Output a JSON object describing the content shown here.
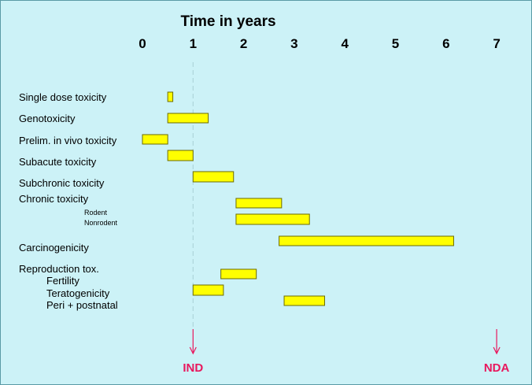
{
  "colors": {
    "background": "#ccf2f7",
    "bar_fill": "#ffff00",
    "bar_stroke": "#6b6b00",
    "milestone": "#e8175d",
    "reference_line": "#a9d0d6"
  },
  "chart_data": {
    "type": "gantt",
    "title": "Time in years",
    "xlim": [
      0,
      7
    ],
    "x_ticks": [
      0,
      1,
      2,
      3,
      4,
      5,
      6,
      7
    ],
    "x_tick_labels": [
      "0",
      "1",
      "2",
      "3",
      "4",
      "5",
      "6",
      "7"
    ],
    "reference_line_x": 1,
    "bars": [
      {
        "label": "Single dose toxicity",
        "start": 0.5,
        "end": 0.6
      },
      {
        "label": "Genotoxicity",
        "start": 0.5,
        "end": 1.3
      },
      {
        "label": "Prelim. in vivo toxicity",
        "start": 0.0,
        "end": 0.5
      },
      {
        "label": "Subacute toxicity",
        "start": 0.5,
        "end": 1.0
      },
      {
        "label": "Subchronic toxicity",
        "start": 1.0,
        "end": 1.8
      },
      {
        "label": "Rodent",
        "start": 1.85,
        "end": 2.75
      },
      {
        "label": "Nonrodent",
        "start": 1.85,
        "end": 3.3
      },
      {
        "label": "Carcinogenicity",
        "start": 2.7,
        "end": 6.15
      },
      {
        "label": "Fertility",
        "start": 1.55,
        "end": 2.25
      },
      {
        "label": "Teratogenicity",
        "start": 1.0,
        "end": 1.6
      },
      {
        "label": "Peri + postnatal",
        "start": 2.8,
        "end": 3.6
      }
    ],
    "row_labels": [
      {
        "text": "Single dose toxicity"
      },
      {
        "text": "Genotoxicity"
      },
      {
        "text": "Prelim. in vivo toxicity"
      },
      {
        "text": "Subacute toxicity"
      },
      {
        "text": "Subchronic toxicity"
      },
      {
        "text": "Chronic toxicity"
      },
      {
        "text": "Rodent"
      },
      {
        "text": "Nonrodent"
      },
      {
        "text": "Carcinogenicity"
      },
      {
        "text": "Reproduction tox."
      },
      {
        "text": "Fertility"
      },
      {
        "text": "Teratogenicity"
      },
      {
        "text": "Peri + postnatal"
      }
    ],
    "milestones": [
      {
        "label": "IND",
        "x": 1
      },
      {
        "label": "NDA",
        "x": 7
      }
    ]
  }
}
